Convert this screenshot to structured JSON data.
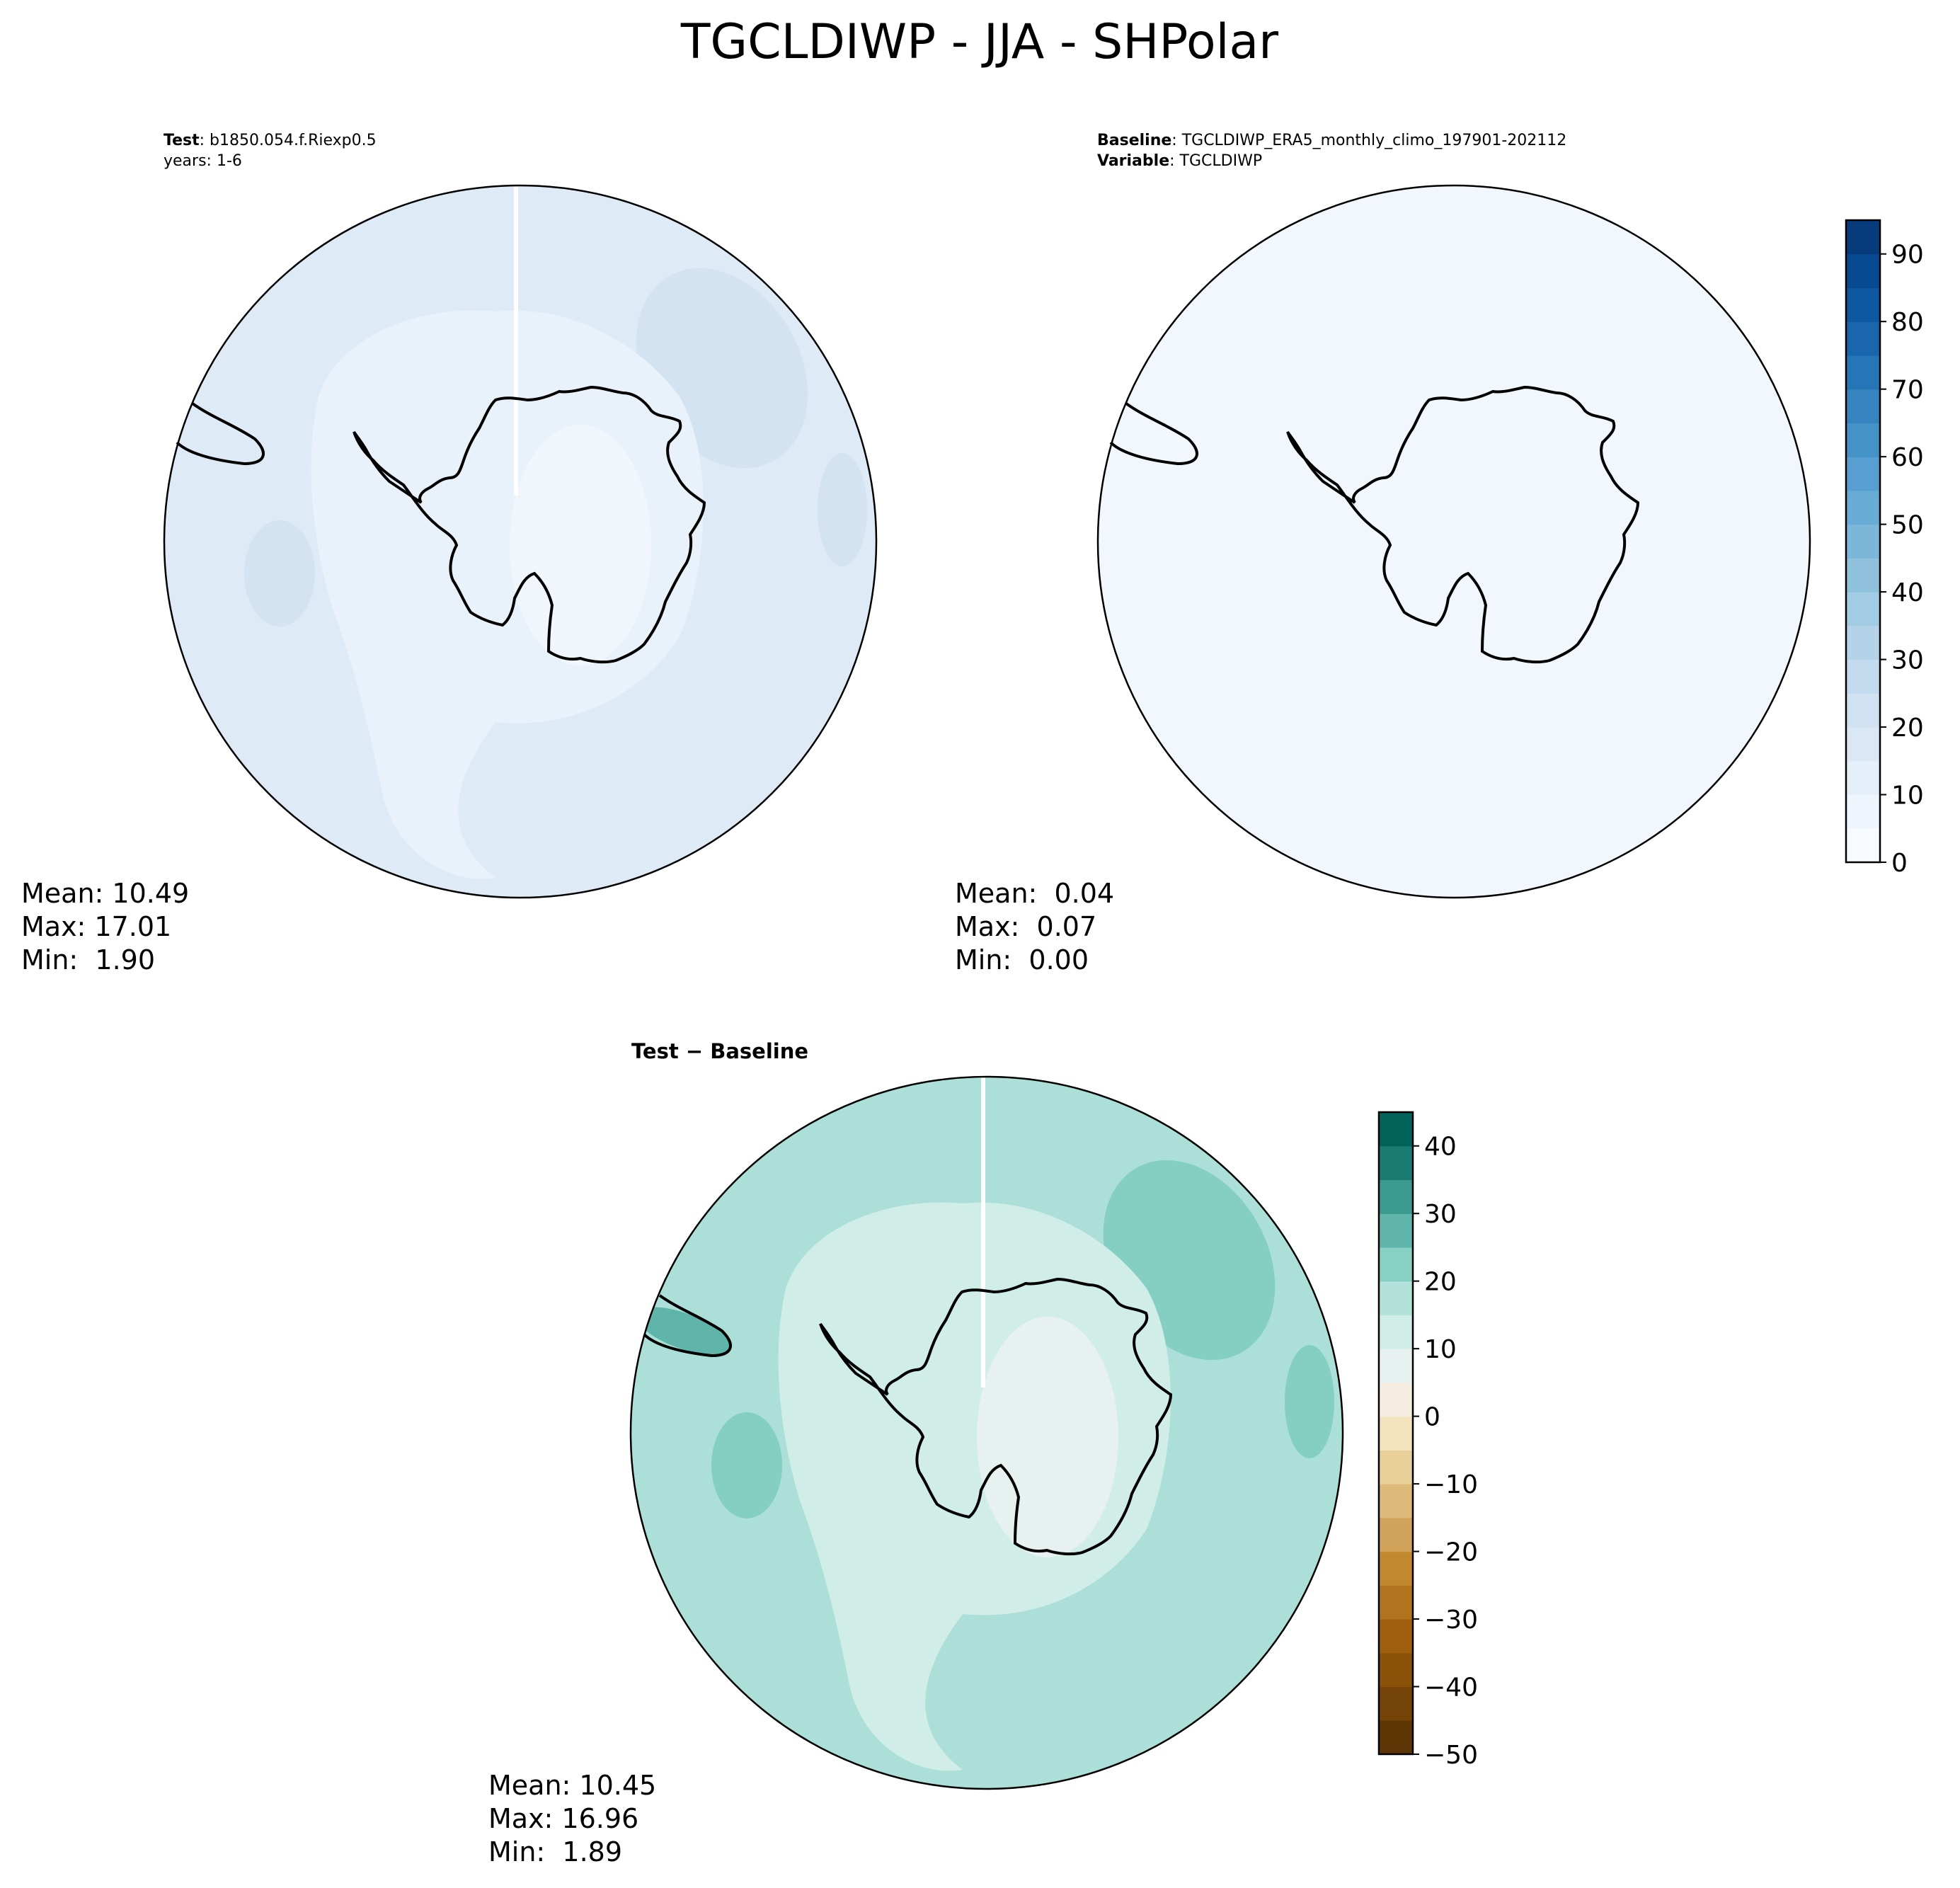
{
  "figure": {
    "title": "TGCLDIWP - JJA - SHPolar"
  },
  "panels": {
    "test": {
      "header_line1_bold": "Test",
      "header_line1_rest": ": b1850.054.f.Riexp0.5",
      "header_line2": "years: 1-6",
      "stats": {
        "mean": "Mean: 10.49",
        "max": "Max: 17.01",
        "min": "Min:  1.90"
      }
    },
    "baseline": {
      "header_line1_bold": "Baseline",
      "header_line1_rest": ": TGCLDIWP_ERA5_monthly_climo_197901-202112",
      "header_line2_bold": "Variable",
      "header_line2_rest": ": TGCLDIWP",
      "stats": {
        "mean": "Mean:  0.04",
        "max": "Max:  0.07",
        "min": "Min:  0.00"
      }
    },
    "diff": {
      "header_bold": "Test − Baseline",
      "stats": {
        "mean": "Mean: 10.45",
        "max": "Max: 16.96",
        "min": "Min:  1.89"
      }
    }
  },
  "colorbars": {
    "blues": {
      "colormap": "Blues",
      "range": [
        0,
        95
      ],
      "step": 5,
      "tick_labels": [
        "0",
        "10",
        "20",
        "30",
        "40",
        "50",
        "60",
        "70",
        "80",
        "90"
      ],
      "colors": [
        "#f7fbff",
        "#eef5fc",
        "#e4eff9",
        "#dae8f6",
        "#d0e2f2",
        "#c3dbee",
        "#b4d3e9",
        "#a2cce3",
        "#8fc1dd",
        "#7cb7da",
        "#68acd5",
        "#569fd0",
        "#4592c8",
        "#3584c0",
        "#2575b7",
        "#1966ad",
        "#0e58a2",
        "#084a91",
        "#083b7c"
      ]
    },
    "diverging": {
      "colormap": "BrBG",
      "range": [
        -50,
        45
      ],
      "step": 5,
      "tick_labels": [
        "−50",
        "−40",
        "−30",
        "−20",
        "−10",
        "0",
        "10",
        "20",
        "30",
        "40"
      ],
      "colors": [
        "#5e3505",
        "#744307",
        "#8a5108",
        "#9f5f0f",
        "#b1731d",
        "#c1882f",
        "#d0a25a",
        "#ddba79",
        "#e9d09b",
        "#f4e4bd",
        "#f5ede0",
        "#e7f1ef",
        "#d0ede8",
        "#b2e2da",
        "#89d0c4",
        "#5fb5aa",
        "#3b998f",
        "#1b7b72",
        "#03635a"
      ]
    }
  }
}
